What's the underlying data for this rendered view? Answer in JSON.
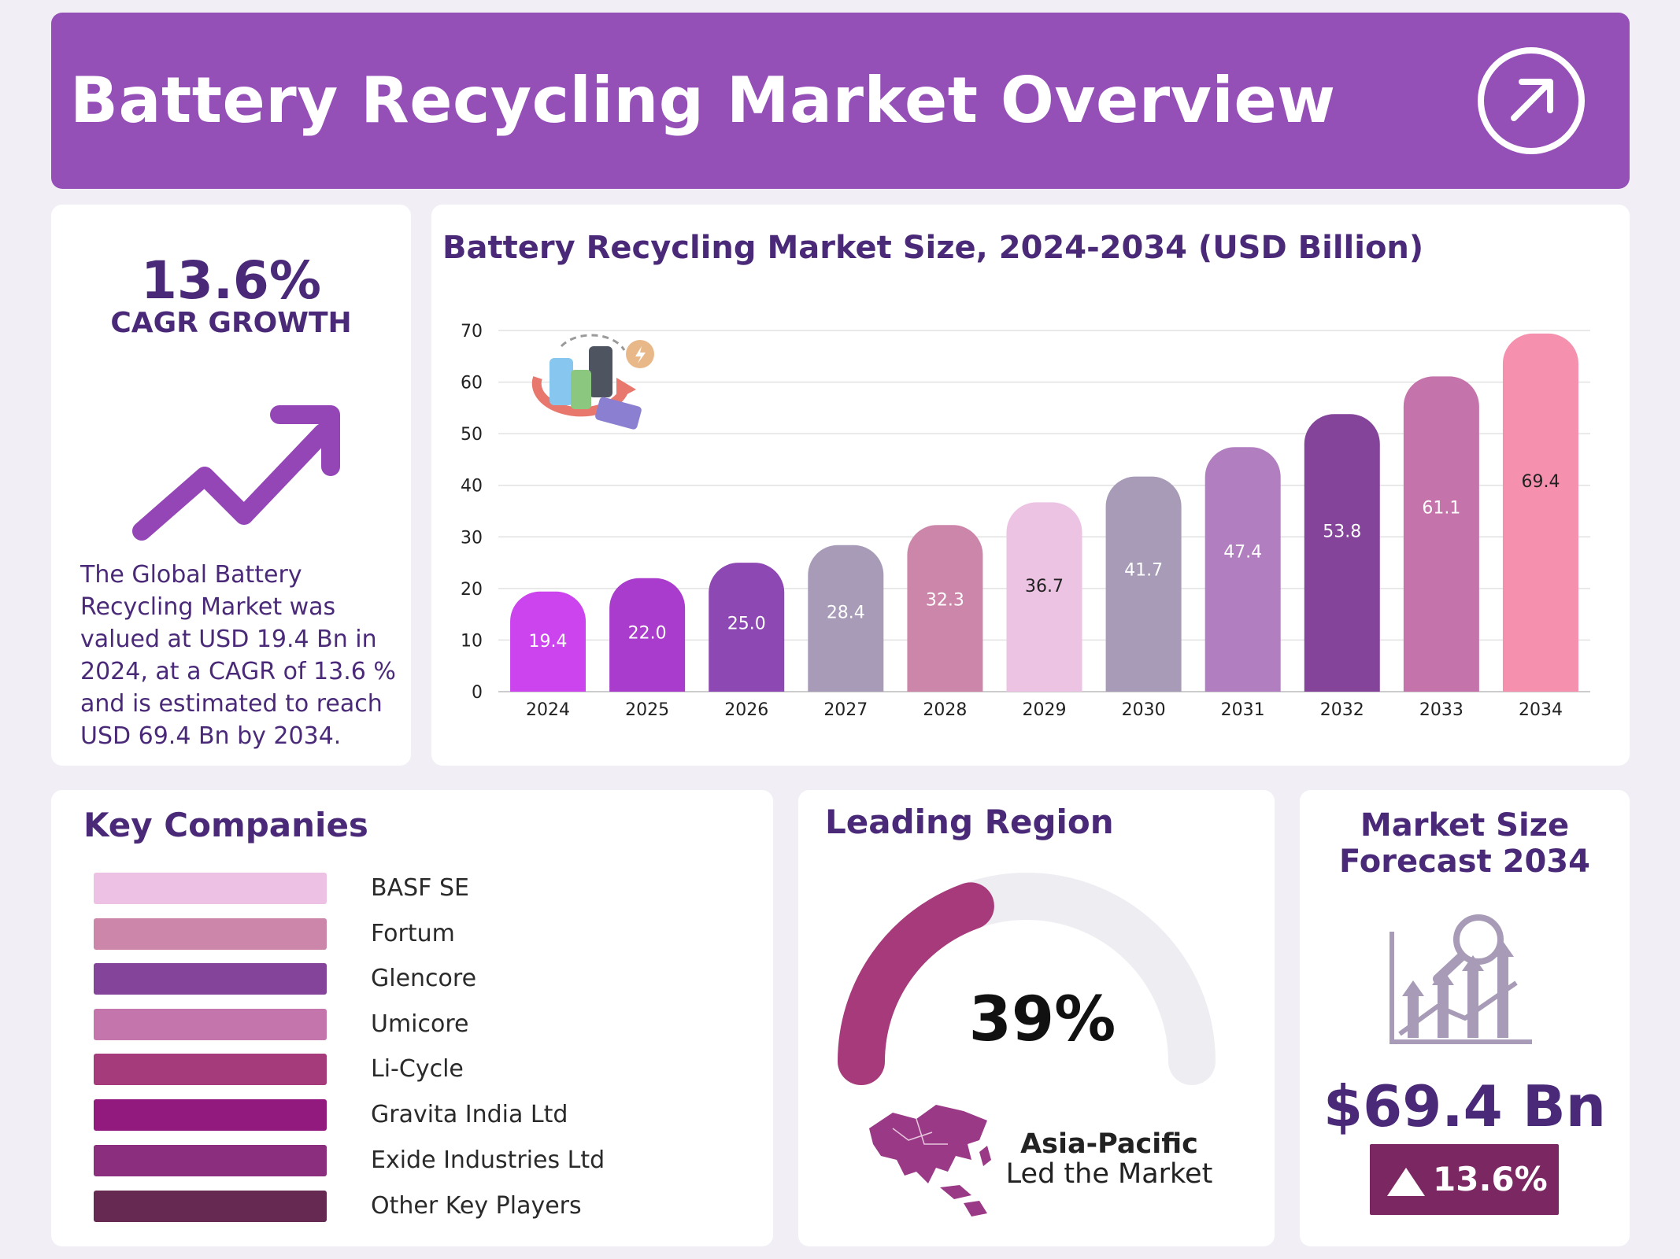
{
  "header": {
    "title": "Battery Recycling Market Overview",
    "icon": "arrow-up-right-circle-icon",
    "background": "#9550b8"
  },
  "cagr": {
    "value": "13.6%",
    "label": "CAGR GROWTH",
    "description": "The Global Battery Recycling Market was valued at USD 19.4 Bn in 2024, at a CAGR of 13.6 % and is estimated to reach USD 69.4 Bn by 2034."
  },
  "chart_data": {
    "type": "bar",
    "title": "Battery Recycling Market Size, 2024-2034 (USD Billion)",
    "xlabel": "",
    "ylabel": "",
    "categories": [
      "2024",
      "2025",
      "2026",
      "2027",
      "2028",
      "2029",
      "2030",
      "2031",
      "2032",
      "2033",
      "2034"
    ],
    "values": [
      19.4,
      22.0,
      25.0,
      28.4,
      32.3,
      36.7,
      41.7,
      47.4,
      53.8,
      61.1,
      69.4
    ],
    "value_labels": [
      "19.4",
      "22.0",
      "25.0",
      "28.4",
      "32.3",
      "36.7",
      "41.7",
      "47.4",
      "53.8",
      "61.1",
      "69.4"
    ],
    "colors": [
      "#cc44ee",
      "#a93ccc",
      "#8e48b4",
      "#a79bb7",
      "#cc86aa",
      "#edc3e3",
      "#a79bb7",
      "#b17fc0",
      "#84449a",
      "#c474aa",
      "#f590ae"
    ],
    "label_colors": [
      "#ffffff",
      "#ffffff",
      "#ffffff",
      "#ffffff",
      "#ffffff",
      "#222222",
      "#ffffff",
      "#ffffff",
      "#ffffff",
      "#ffffff",
      "#222222"
    ],
    "yticks": [
      0,
      10,
      20,
      30,
      40,
      50,
      60,
      70
    ],
    "ylim": [
      0,
      70
    ],
    "grid": true,
    "legend": "none"
  },
  "companies": {
    "title": "Key Companies",
    "items": [
      {
        "name": "BASF SE",
        "color": "#edc1e4"
      },
      {
        "name": "Fortum",
        "color": "#cb86aa"
      },
      {
        "name": "Glencore",
        "color": "#84449a"
      },
      {
        "name": "Umicore",
        "color": "#c476ac"
      },
      {
        "name": "Li-Cycle",
        "color": "#a53b7b"
      },
      {
        "name": "Gravita India Ltd",
        "color": "#92197e"
      },
      {
        "name": "Exide Industries Ltd",
        "color": "#8b2e7d"
      },
      {
        "name": "Other Key Players",
        "color": "#662a52"
      }
    ]
  },
  "region": {
    "title": "Leading Region",
    "share_label": "39%",
    "share": 0.39,
    "name": "Asia-Pacific",
    "subtitle": "Led the Market",
    "gauge_color": "#a73a7a",
    "track_color": "#eeedf2"
  },
  "forecast": {
    "title": "Market Size Forecast 2034",
    "value": "$69.4 Bn",
    "growth": "13.6%",
    "icon": "growth-chart-magnifier-icon"
  }
}
